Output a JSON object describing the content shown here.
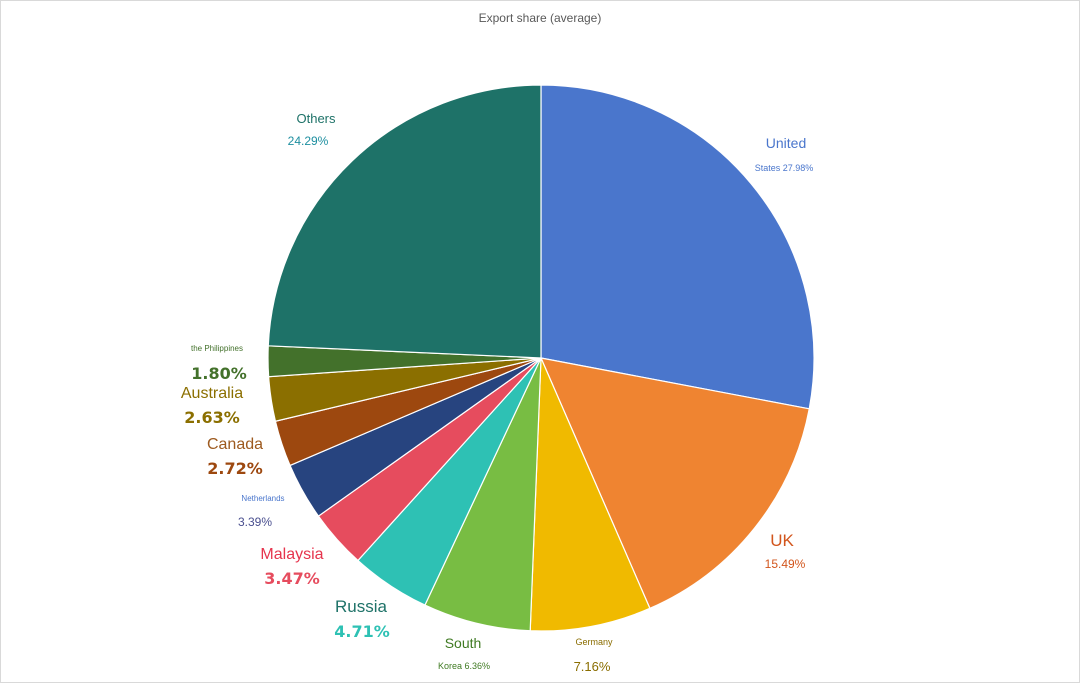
{
  "chart_data": {
    "type": "pie",
    "title": "Export share (average)",
    "unit": "%",
    "start": "12 o'clock, clockwise",
    "slices": [
      {
        "name": "United States",
        "value": 27.98,
        "color": "#4a76cc",
        "label_line1": "United",
        "label_line2": "States 27.98%"
      },
      {
        "name": "UK",
        "value": 15.49,
        "color": "#ef8431",
        "label_line1": "UK",
        "label_line2": "15.49%"
      },
      {
        "name": "Germany",
        "value": 7.16,
        "color": "#f0ba00",
        "label_line1": "Germany",
        "label_line2": "7.16%"
      },
      {
        "name": "South Korea",
        "value": 6.36,
        "color": "#78bd43",
        "label_line1": "South",
        "label_line2": "Korea 6.36%"
      },
      {
        "name": "Russia",
        "value": 4.71,
        "color": "#2ec1b4",
        "label_line1": "Russia",
        "label_line2": "4.71%"
      },
      {
        "name": "Malaysia",
        "value": 3.47,
        "color": "#e64c5e",
        "label_line1": "Malaysia",
        "label_line2": "3.47%"
      },
      {
        "name": "Netherlands",
        "value": 3.39,
        "color": "#27447f",
        "label_line1": "Netherlands",
        "label_line2": "3.39%"
      },
      {
        "name": "Canada",
        "value": 2.72,
        "color": "#9d480f",
        "label_line1": "Canada",
        "label_line2": "2.72%"
      },
      {
        "name": "Australia",
        "value": 2.63,
        "color": "#8b6f00",
        "label_line1": "Australia",
        "label_line2": "2.63%"
      },
      {
        "name": "the Philippines",
        "value": 1.8,
        "color": "#43712b",
        "label_line1": "the Philippines",
        "label_line2": "1.80%"
      },
      {
        "name": "Others",
        "value": 24.29,
        "color": "#1e7268",
        "label_line1": "Others",
        "label_line2": "24.29%"
      }
    ]
  }
}
